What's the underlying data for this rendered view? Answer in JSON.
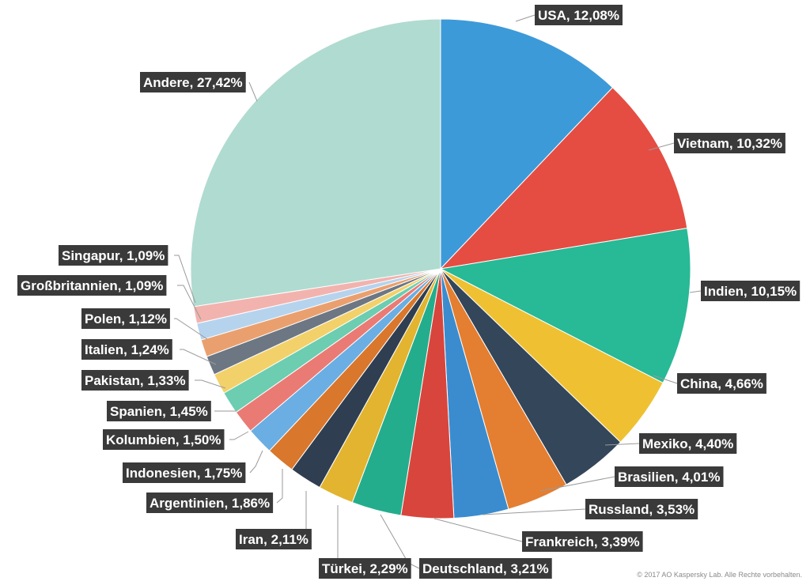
{
  "chart_data": {
    "type": "pie",
    "start_angle_deg": 0,
    "direction": "clockwise",
    "slices": [
      {
        "label": "USA, 12,08%",
        "name": "USA",
        "value": 12.08,
        "color": "#3d9ad9"
      },
      {
        "label": "Vietnam, 10,32%",
        "name": "Vietnam",
        "value": 10.32,
        "color": "#e54d42"
      },
      {
        "label": "Indien, 10,15%",
        "name": "Indien",
        "value": 10.15,
        "color": "#28b996"
      },
      {
        "label": "China, 4,66%",
        "name": "China",
        "value": 4.66,
        "color": "#efc132"
      },
      {
        "label": "Mexiko, 4,40%",
        "name": "Mexiko",
        "value": 4.4,
        "color": "#344659"
      },
      {
        "label": "Brasilien, 4,01%",
        "name": "Brasilien",
        "value": 4.01,
        "color": "#e47e31"
      },
      {
        "label": "Russland, 3,53%",
        "name": "Russland",
        "value": 3.53,
        "color": "#3a8ccf"
      },
      {
        "label": "Frankreich, 3,39%",
        "name": "Frankreich",
        "value": 3.39,
        "color": "#d8453c"
      },
      {
        "label": "Deutschland, 3,21%",
        "name": "Deutschland",
        "value": 3.21,
        "color": "#24ad8c"
      },
      {
        "label": "Türkei, 2,29%",
        "name": "Türkei",
        "value": 2.29,
        "color": "#e2b42f"
      },
      {
        "label": "Iran, 2,11%",
        "name": "Iran",
        "value": 2.11,
        "color": "#2f3f51"
      },
      {
        "label": "Argentinien, 1,86%",
        "name": "Argentinien",
        "value": 1.86,
        "color": "#d9772c"
      },
      {
        "label": "Indonesien, 1,75%",
        "name": "Indonesien",
        "value": 1.75,
        "color": "#6aaee3"
      },
      {
        "label": "Kolumbien, 1,50%",
        "name": "Kolumbien",
        "value": 1.5,
        "color": "#ea7b74"
      },
      {
        "label": "Spanien, 1,45%",
        "name": "Spanien",
        "value": 1.45,
        "color": "#6ccdb0"
      },
      {
        "label": "Pakistan, 1,33%",
        "name": "Pakistan",
        "value": 1.33,
        "color": "#f3d16a"
      },
      {
        "label": "Italien, 1,24%",
        "name": "Italien",
        "value": 1.24,
        "color": "#6c7783"
      },
      {
        "label": "Polen, 1,12%",
        "name": "Polen",
        "value": 1.12,
        "color": "#eaa06e"
      },
      {
        "label": "Großbritannien, 1,09%",
        "name": "Großbritannien",
        "value": 1.09,
        "color": "#b6d3ee"
      },
      {
        "label": "Singapur, 1,09%",
        "name": "Singapur",
        "value": 1.09,
        "color": "#f2b3ae"
      },
      {
        "label": "Andere, 27,42%",
        "name": "Andere",
        "value": 27.42,
        "color": "#b0dbd0"
      }
    ]
  },
  "footer": {
    "copyright": "© 2017 AO Kaspersky Lab. Alle Rechte vorbehalten."
  }
}
